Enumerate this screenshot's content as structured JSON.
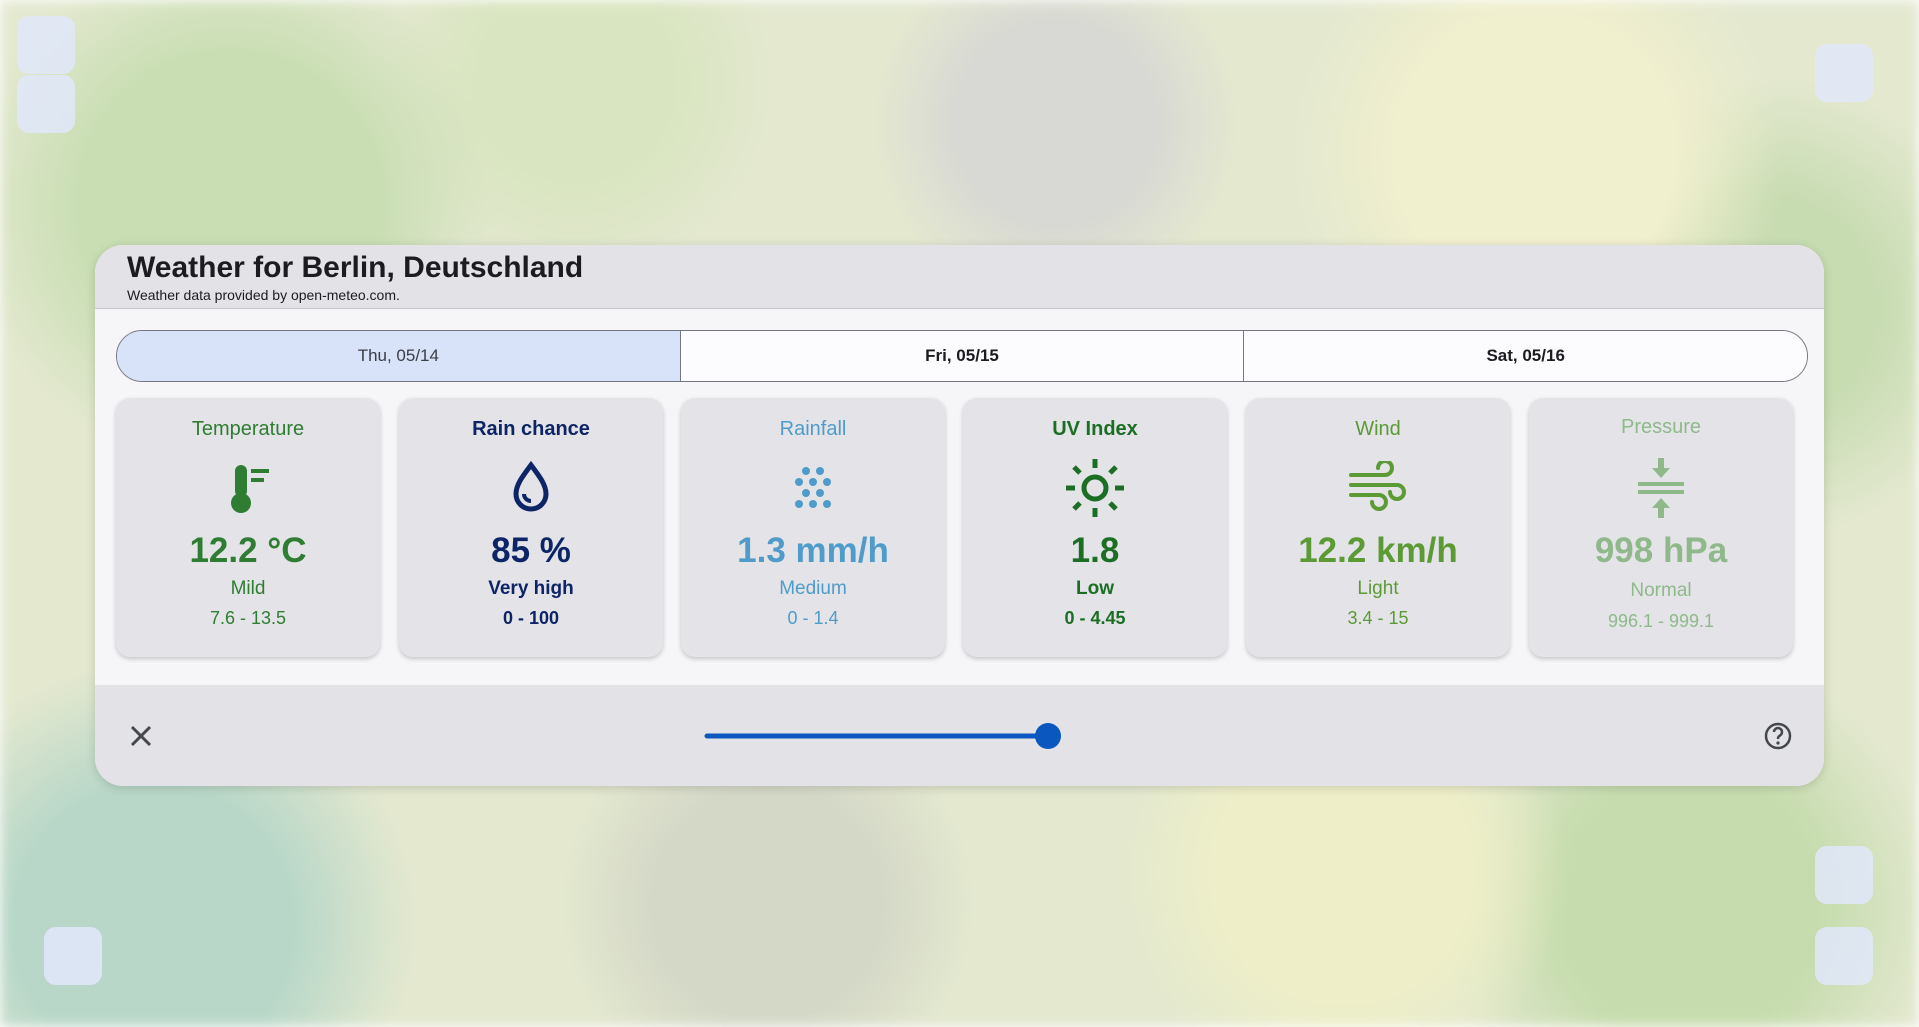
{
  "header": {
    "title": "Weather for Berlin, Deutschland",
    "subtitle": "Weather data provided by open-meteo.com."
  },
  "tabs": [
    "Thu, 05/14",
    "Fri, 05/15",
    "Sat, 05/16"
  ],
  "selected_tab": 0,
  "cards": [
    {
      "label": "Temperature",
      "value": "12.2 °C",
      "description": "Mild",
      "range": "7.6 - 13.5",
      "color": "#2e7d32"
    },
    {
      "label": "Rain chance",
      "value": "85 %",
      "description": "Very high",
      "range": "0 - 100",
      "color": "#0d2466"
    },
    {
      "label": "Rainfall",
      "value": "1.3 mm/h",
      "description": "Medium",
      "range": "0 - 1.4",
      "color": "#4f9bc9"
    },
    {
      "label": "UV Index",
      "value": "1.8",
      "description": "Low",
      "range": "0 - 4.45",
      "color": "#1b6e24"
    },
    {
      "label": "Wind",
      "value": "12.2 km/h",
      "description": "Light",
      "range": "3.4 - 15",
      "color": "#5c9a36"
    },
    {
      "label": "Pressure",
      "value": "998 hPa",
      "description": "Normal",
      "range": "996.1 - 999.1",
      "color": "#8fb88b"
    }
  ]
}
